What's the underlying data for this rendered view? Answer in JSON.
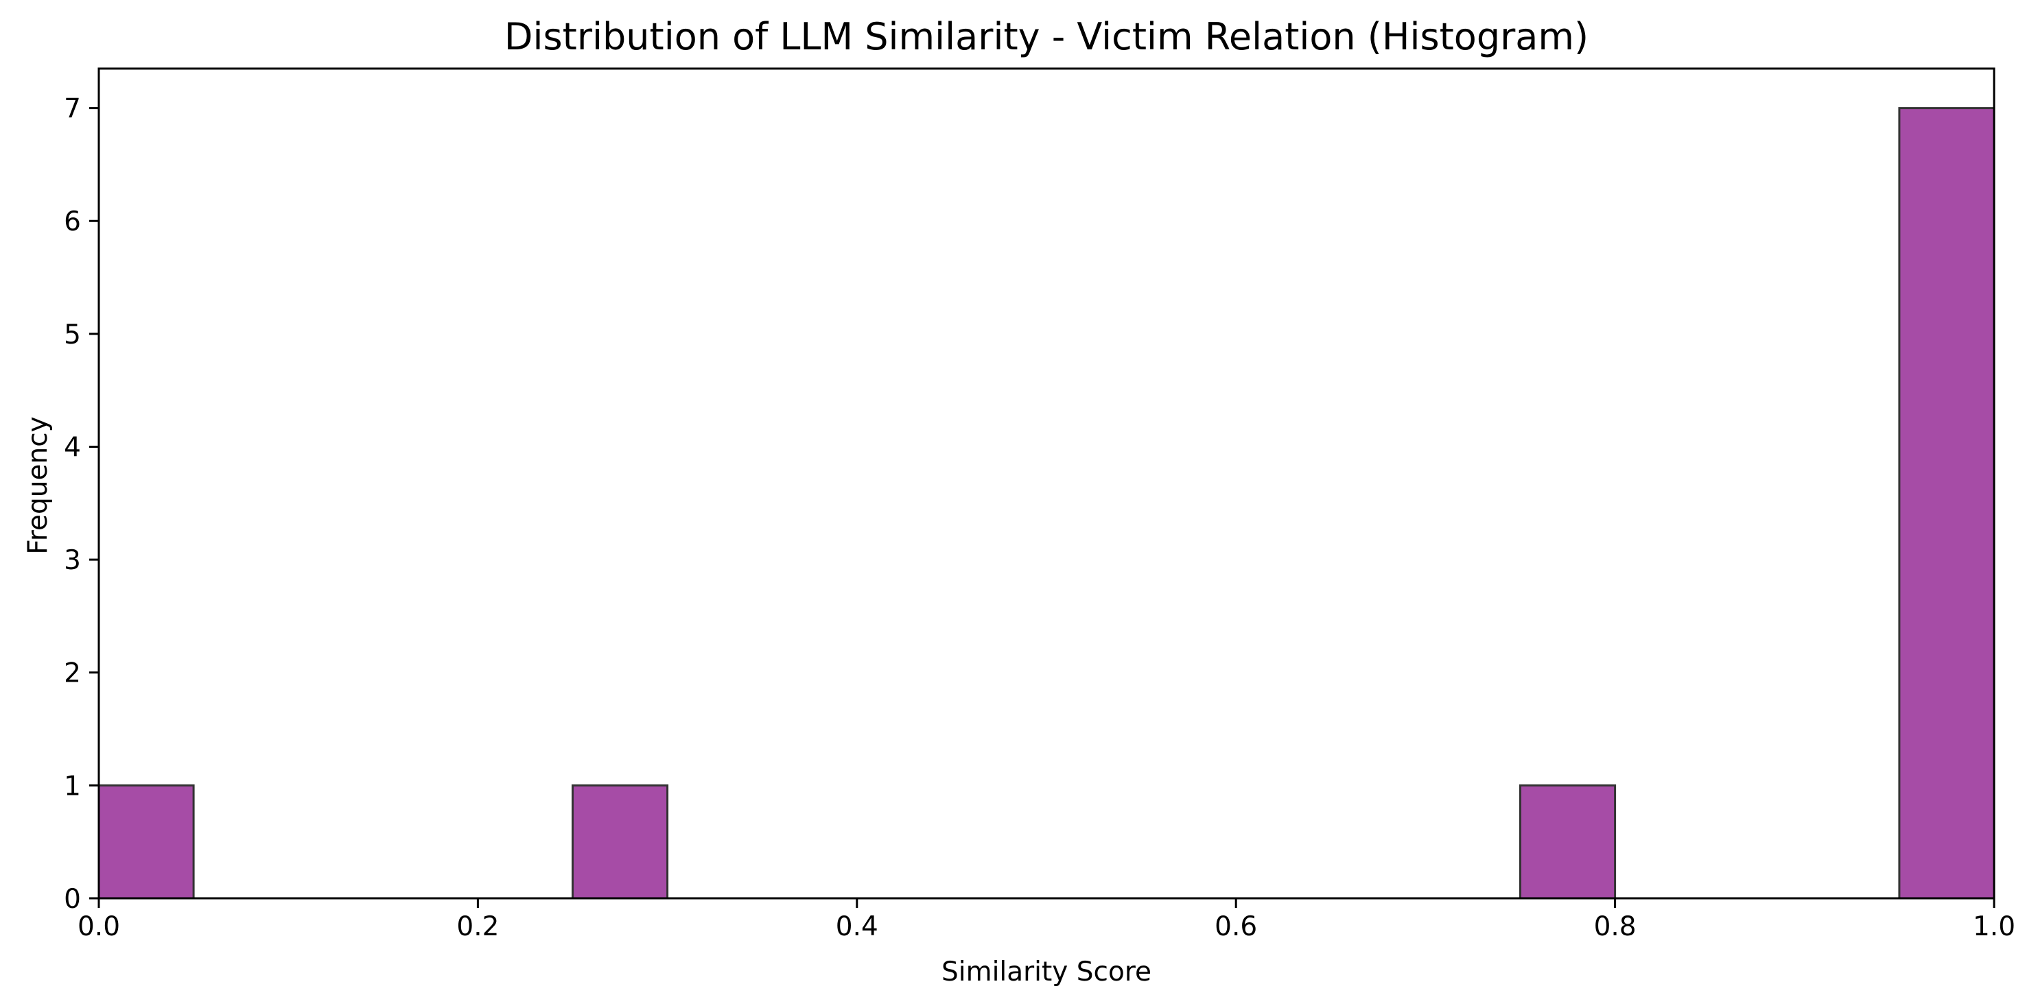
{
  "chart_data": {
    "type": "bar",
    "title": "Distribution of LLM Similarity - Victim Relation (Histogram)",
    "xlabel": "Similarity Score",
    "ylabel": "Frequency",
    "xlim": [
      0.0,
      1.0
    ],
    "ylim": [
      0,
      7.35
    ],
    "x_ticks": [
      "0.0",
      "0.2",
      "0.4",
      "0.6",
      "0.8",
      "1.0"
    ],
    "y_ticks": [
      "0",
      "1",
      "2",
      "3",
      "4",
      "5",
      "6",
      "7"
    ],
    "bin_width": 0.05,
    "bins": [
      {
        "start": 0.0,
        "end": 0.05,
        "count": 1
      },
      {
        "start": 0.25,
        "end": 0.3,
        "count": 1
      },
      {
        "start": 0.75,
        "end": 0.8,
        "count": 1
      },
      {
        "start": 0.95,
        "end": 1.0,
        "count": 7
      }
    ],
    "bar_color": "#a64ca6",
    "edge_color": "#333333",
    "grid": false,
    "legend": "none"
  }
}
